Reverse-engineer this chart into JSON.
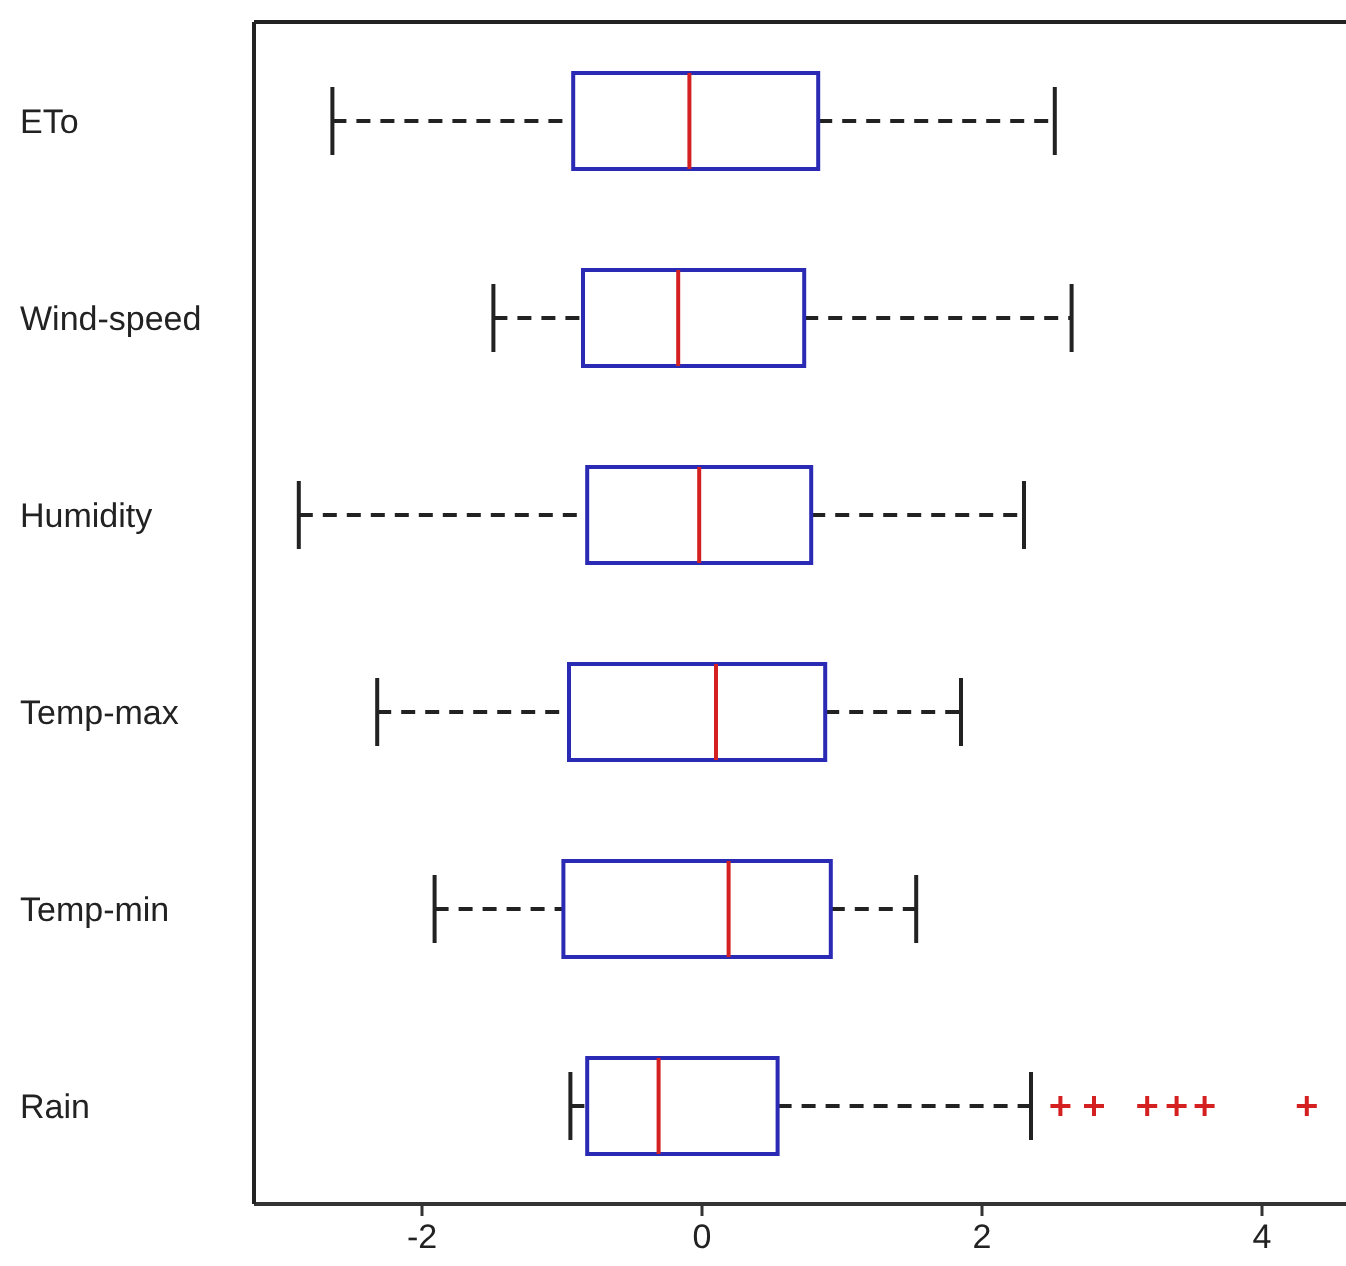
{
  "chart_data": {
    "type": "box",
    "orientation": "horizontal",
    "categories": [
      "ETo",
      "Wind-speed",
      "Humidity",
      "Temp-max",
      "Temp-min",
      "Rain"
    ],
    "series": [
      {
        "color": "#2a2ab4",
        "boxes": [
          {
            "low": -2.64,
            "q1": -0.92,
            "median": -0.09,
            "q3": 0.83,
            "high": 2.52
          },
          {
            "low": -1.49,
            "q1": -0.85,
            "median": -0.17,
            "q3": 0.73,
            "high": 2.64
          },
          {
            "low": -2.88,
            "q1": -0.82,
            "median": -0.02,
            "q3": 0.78,
            "high": 2.3
          },
          {
            "low": -2.32,
            "q1": -0.95,
            "median": 0.1,
            "q3": 0.88,
            "high": 1.85
          },
          {
            "low": -1.91,
            "q1": -0.99,
            "median": 0.19,
            "q3": 0.92,
            "high": 1.53
          },
          {
            "low": -0.94,
            "q1": -0.82,
            "median": -0.31,
            "q3": 0.54,
            "high": 2.35,
            "outliers": [
              2.56,
              2.8,
              3.18,
              3.39,
              3.59,
              4.32
            ]
          }
        ]
      }
    ],
    "xlim": [
      -3.2,
      4.6
    ],
    "xticks": [
      -2,
      0,
      2,
      4
    ],
    "marker": "cross",
    "line_style": "dashed"
  }
}
